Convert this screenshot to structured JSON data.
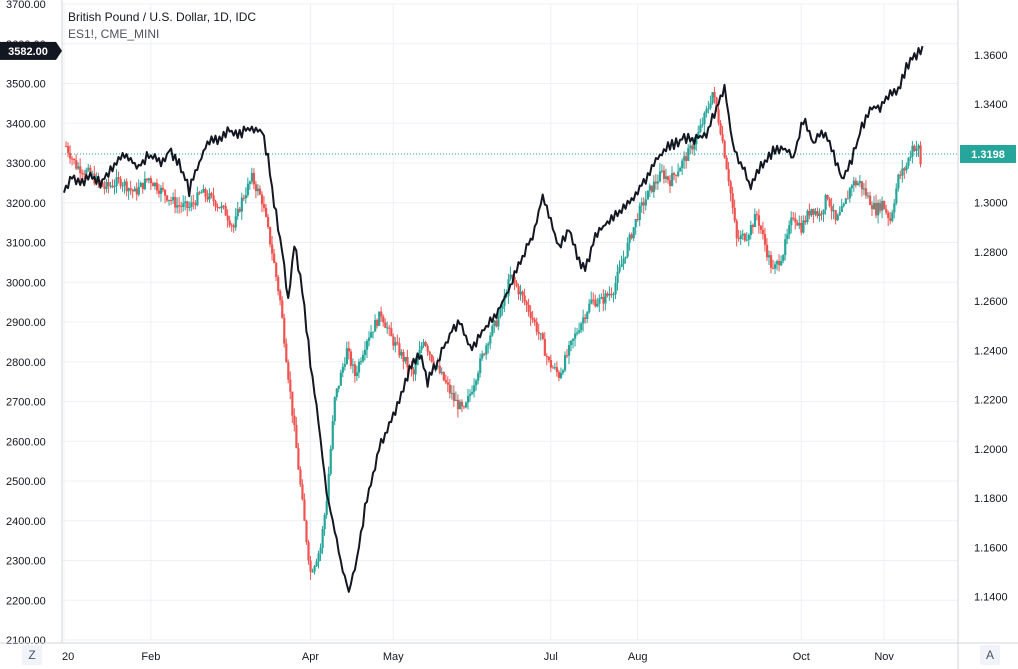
{
  "legend": {
    "main_series": "British Pound / U.S. Dollar, 1D, IDC",
    "compare_series": "ES1!, CME_MINI"
  },
  "controls": {
    "timezone_button": "Z",
    "auto_scale_button": "A"
  },
  "colors": {
    "up": "#26a69a",
    "down": "#ef5350",
    "compare_line": "#131722",
    "last_price_badge": "#26a69a",
    "compare_badge": "#131722",
    "grid": "#edf0f5"
  },
  "chart_data": {
    "type": "candlestick+line",
    "grid": true,
    "x_ticks": [
      "20",
      "Feb",
      "Apr",
      "May",
      "Jul",
      "Aug",
      "Oct",
      "Nov"
    ],
    "left_axis": {
      "series": "ES1!, CME_MINI",
      "range": [
        2100,
        3700
      ],
      "ticks": [
        "3700.00",
        "3600.00",
        "3500.00",
        "3400.00",
        "3300.00",
        "3200.00",
        "3100.00",
        "3000.00",
        "2900.00",
        "2800.00",
        "2700.00",
        "2600.00",
        "2500.00",
        "2400.00",
        "2300.00",
        "2200.00",
        "2100.00"
      ],
      "last_value_label": "3582.00",
      "last_value": 3582
    },
    "right_axis": {
      "series": "British Pound / U.S. Dollar, 1D, IDC",
      "range": [
        1.1224,
        1.3807
      ],
      "ticks": [
        "1.3600",
        "1.3400",
        "1.3200",
        "1.3000",
        "1.2800",
        "1.2600",
        "1.2400",
        "1.2200",
        "1.2000",
        "1.1800",
        "1.1600",
        "1.1400"
      ],
      "last_value_label": "1.3198",
      "last_value": 1.3198
    },
    "gbpusd_close_path": [
      [
        1.323,
        1
      ],
      [
        1.315,
        6
      ],
      [
        1.312,
        12
      ],
      [
        1.306,
        20
      ],
      [
        1.309,
        28
      ],
      [
        1.304,
        35
      ],
      [
        1.31,
        42
      ],
      [
        1.305,
        48
      ],
      [
        1.299,
        56
      ],
      [
        1.298,
        62
      ],
      [
        1.304,
        68
      ],
      [
        1.301,
        74
      ],
      [
        1.296,
        80
      ],
      [
        1.29,
        84
      ],
      [
        1.301,
        88
      ],
      [
        1.31,
        93
      ],
      [
        1.301,
        98
      ],
      [
        1.28,
        103
      ],
      [
        1.26,
        107
      ],
      [
        1.23,
        111
      ],
      [
        1.2,
        115
      ],
      [
        1.17,
        119
      ],
      [
        1.15,
        122
      ],
      [
        1.16,
        127
      ],
      [
        1.18,
        130
      ],
      [
        1.22,
        134
      ],
      [
        1.24,
        140
      ],
      [
        1.23,
        144
      ],
      [
        1.245,
        150
      ],
      [
        1.255,
        157
      ],
      [
        1.245,
        162
      ],
      [
        1.238,
        167
      ],
      [
        1.23,
        173
      ],
      [
        1.245,
        178
      ],
      [
        1.235,
        183
      ],
      [
        1.228,
        188
      ],
      [
        1.22,
        193
      ],
      [
        1.215,
        198
      ],
      [
        1.23,
        204
      ],
      [
        1.245,
        210
      ],
      [
        1.255,
        216
      ],
      [
        1.27,
        221
      ],
      [
        1.263,
        226
      ],
      [
        1.255,
        231
      ],
      [
        1.245,
        236
      ],
      [
        1.235,
        240
      ],
      [
        1.23,
        245
      ],
      [
        1.24,
        250
      ],
      [
        1.25,
        255
      ],
      [
        1.26,
        261
      ],
      [
        1.26,
        266
      ],
      [
        1.265,
        272
      ],
      [
        1.28,
        278
      ],
      [
        1.295,
        284
      ],
      [
        1.305,
        290
      ],
      [
        1.312,
        296
      ],
      [
        1.309,
        300
      ],
      [
        1.315,
        305
      ],
      [
        1.32,
        309
      ],
      [
        1.328,
        314
      ],
      [
        1.339,
        319
      ],
      [
        1.345,
        321
      ],
      [
        1.33,
        325
      ],
      [
        1.31,
        329
      ],
      [
        1.285,
        333
      ],
      [
        1.287,
        338
      ],
      [
        1.295,
        343
      ],
      [
        1.28,
        348
      ],
      [
        1.272,
        351
      ],
      [
        1.28,
        356
      ],
      [
        1.295,
        361
      ],
      [
        1.29,
        365
      ],
      [
        1.298,
        370
      ],
      [
        1.295,
        374
      ],
      [
        1.303,
        378
      ],
      [
        1.292,
        382
      ],
      [
        1.298,
        386
      ],
      [
        1.308,
        390
      ],
      [
        1.308,
        394
      ],
      [
        1.302,
        398
      ],
      [
        1.297,
        402
      ],
      [
        1.3,
        405
      ],
      [
        1.293,
        409
      ],
      [
        1.31,
        413
      ],
      [
        1.315,
        417
      ],
      [
        1.323,
        420
      ],
      [
        1.322,
        423
      ],
      [
        1.315,
        424
      ]
    ],
    "es_close_path": [
      [
        3230,
        0
      ],
      [
        3270,
        4
      ],
      [
        3250,
        8
      ],
      [
        3270,
        14
      ],
      [
        3250,
        18
      ],
      [
        3290,
        24
      ],
      [
        3320,
        30
      ],
      [
        3290,
        36
      ],
      [
        3320,
        42
      ],
      [
        3300,
        48
      ],
      [
        3330,
        52
      ],
      [
        3290,
        58
      ],
      [
        3230,
        62
      ],
      [
        3290,
        66
      ],
      [
        3360,
        72
      ],
      [
        3360,
        76
      ],
      [
        3380,
        82
      ],
      [
        3370,
        86
      ],
      [
        3390,
        92
      ],
      [
        3380,
        98
      ],
      [
        3310,
        101
      ],
      [
        3200,
        104
      ],
      [
        3080,
        108
      ],
      [
        2950,
        111
      ],
      [
        3100,
        114
      ],
      [
        2980,
        118
      ],
      [
        2800,
        122
      ],
      [
        2650,
        126
      ],
      [
        2470,
        130
      ],
      [
        2400,
        133
      ],
      [
        2300,
        137
      ],
      [
        2220,
        141
      ],
      [
        2300,
        145
      ],
      [
        2430,
        149
      ],
      [
        2520,
        153
      ],
      [
        2600,
        157
      ],
      [
        2650,
        162
      ],
      [
        2700,
        166
      ],
      [
        2780,
        171
      ],
      [
        2820,
        176
      ],
      [
        2750,
        180
      ],
      [
        2800,
        185
      ],
      [
        2870,
        191
      ],
      [
        2900,
        196
      ],
      [
        2830,
        202
      ],
      [
        2880,
        208
      ],
      [
        2920,
        214
      ],
      [
        2980,
        220
      ],
      [
        3050,
        226
      ],
      [
        3120,
        232
      ],
      [
        3220,
        237
      ],
      [
        3150,
        241
      ],
      [
        3090,
        245
      ],
      [
        3130,
        250
      ],
      [
        3050,
        255
      ],
      [
        3030,
        258
      ],
      [
        3120,
        263
      ],
      [
        3150,
        269
      ],
      [
        3180,
        275
      ],
      [
        3210,
        281
      ],
      [
        3250,
        287
      ],
      [
        3310,
        293
      ],
      [
        3340,
        299
      ],
      [
        3360,
        306
      ],
      [
        3360,
        312
      ],
      [
        3370,
        318
      ],
      [
        3450,
        324
      ],
      [
        3490,
        327
      ],
      [
        3350,
        331
      ],
      [
        3300,
        335
      ],
      [
        3240,
        340
      ],
      [
        3300,
        346
      ],
      [
        3330,
        351
      ],
      [
        3340,
        356
      ],
      [
        3310,
        361
      ],
      [
        3410,
        366
      ],
      [
        3350,
        371
      ],
      [
        3380,
        375
      ],
      [
        3340,
        380
      ],
      [
        3260,
        385
      ],
      [
        3310,
        390
      ],
      [
        3390,
        395
      ],
      [
        3440,
        400
      ],
      [
        3440,
        404
      ],
      [
        3470,
        409
      ],
      [
        3480,
        413
      ],
      [
        3540,
        417
      ],
      [
        3570,
        421
      ],
      [
        3582,
        425
      ]
    ],
    "notes": "Values read approximately from the printed axes; candles are drawn around the estimated GBP/USD closing path with estimated daily ranges."
  }
}
